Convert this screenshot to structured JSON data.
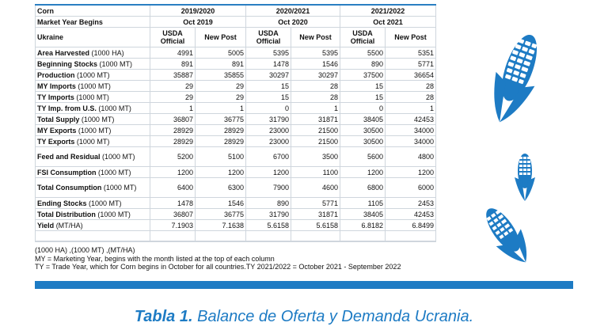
{
  "table": {
    "title_cell": "Corn",
    "market_year_label": "Market Year Begins",
    "country_label": "Ukraine",
    "periods": [
      {
        "year": "2019/2020",
        "begins": "Oct 2019"
      },
      {
        "year": "2020/2021",
        "begins": "Oct 2020"
      },
      {
        "year": "2021/2022",
        "begins": "Oct 2021"
      }
    ],
    "sources": {
      "usda": "USDA Official",
      "post": "New Post"
    },
    "rows": [
      {
        "label": "Area Harvested",
        "unit": " (1000 HA)",
        "values": [
          "4991",
          "5005",
          "5395",
          "5395",
          "5500",
          "5351"
        ]
      },
      {
        "label": "Beginning Stocks",
        "unit": " (1000 MT)",
        "values": [
          "891",
          "891",
          "1478",
          "1546",
          "890",
          "5771"
        ]
      },
      {
        "label": "Production",
        "unit": " (1000 MT)",
        "values": [
          "35887",
          "35855",
          "30297",
          "30297",
          "37500",
          "36654"
        ]
      },
      {
        "label": "MY Imports",
        "unit": " (1000 MT)",
        "values": [
          "29",
          "29",
          "15",
          "28",
          "15",
          "28"
        ]
      },
      {
        "label": "TY Imports",
        "unit": " (1000 MT)",
        "values": [
          "29",
          "29",
          "15",
          "28",
          "15",
          "28"
        ]
      },
      {
        "label": "TY Imp. from U.S.",
        "unit": " (1000 MT)",
        "values": [
          "1",
          "1",
          "0",
          "1",
          "0",
          "1"
        ]
      },
      {
        "label": "Total Supply",
        "unit": " (1000 MT)",
        "values": [
          "36807",
          "36775",
          "31790",
          "31871",
          "38405",
          "42453"
        ]
      },
      {
        "label": "MY Exports",
        "unit": " (1000 MT)",
        "values": [
          "28929",
          "28929",
          "23000",
          "21500",
          "30500",
          "34000"
        ]
      },
      {
        "label": "TY Exports",
        "unit": " (1000 MT)",
        "values": [
          "28929",
          "28929",
          "23000",
          "21500",
          "30500",
          "34000"
        ]
      },
      {
        "label": "Feed and Residual",
        "unit": " (1000 MT)",
        "values": [
          "5200",
          "5100",
          "6700",
          "3500",
          "5600",
          "4800"
        ],
        "tall": true
      },
      {
        "label": "FSI Consumption",
        "unit": " (1000 MT)",
        "values": [
          "1200",
          "1200",
          "1200",
          "1100",
          "1200",
          "1200"
        ]
      },
      {
        "label": "Total Consumption",
        "unit": " (1000 MT)",
        "values": [
          "6400",
          "6300",
          "7900",
          "4600",
          "6800",
          "6000"
        ],
        "tall": true
      },
      {
        "label": "Ending Stocks",
        "unit": " (1000 MT)",
        "values": [
          "1478",
          "1546",
          "890",
          "5771",
          "1105",
          "2453"
        ]
      },
      {
        "label": "Total Distribution",
        "unit": " (1000 MT)",
        "values": [
          "36807",
          "36775",
          "31790",
          "31871",
          "38405",
          "42453"
        ]
      },
      {
        "label": "Yield",
        "unit": " (MT/HA)",
        "values": [
          "7.1903",
          "7.1638",
          "5.6158",
          "5.6158",
          "6.8182",
          "6.8499"
        ]
      }
    ]
  },
  "notes": [
    "(1000 HA) ,(1000 MT) ,(MT/HA)",
    "MY = Marketing Year, begins with the month listed at the top of each column",
    "TY = Trade Year, which for Corn begins in October for all countries.TY 2021/2022 = October 2021 - September 2022"
  ],
  "caption": {
    "label": "Tabla 1.",
    "text": " Balance de Oferta y Demanda Ucrania."
  },
  "colors": {
    "accent": "#1d7bc4",
    "grid": "#cfd6dd"
  }
}
